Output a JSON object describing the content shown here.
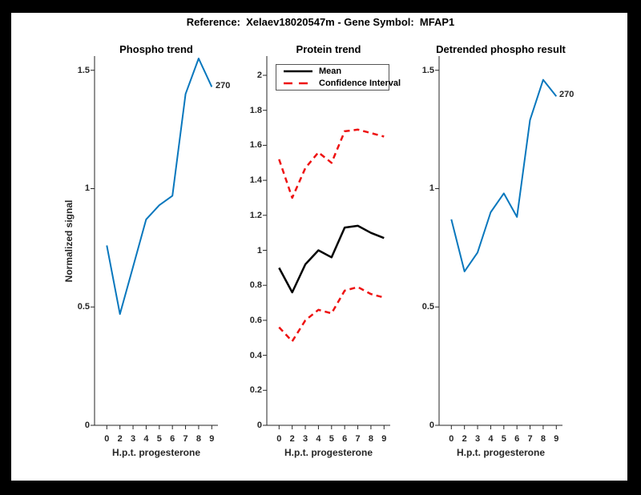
{
  "figure": {
    "title": "Reference:  Xelaev18020547m - Gene Symbol:  MFAP1",
    "background_color": "#ffffff",
    "frame_color": "#000000"
  },
  "axis_color": "#262626",
  "chart_data": [
    {
      "type": "line",
      "title": "Phospho trend",
      "xlabel": "H.p.t. progesterone",
      "ylabel": "Normalized signal",
      "categories": [
        "0",
        "2",
        "3",
        "4",
        "5",
        "6",
        "7",
        "8",
        "9"
      ],
      "yticks": [
        "0",
        "0.5",
        "1",
        "1.5"
      ],
      "ylim": [
        0,
        1.56
      ],
      "grid": false,
      "series": [
        {
          "name": "phospho-signal",
          "color": "#0877bd",
          "dash": "solid",
          "width": 2,
          "values": [
            0.76,
            0.47,
            0.67,
            0.87,
            0.93,
            0.97,
            1.4,
            1.55,
            1.43
          ]
        }
      ],
      "annotation": {
        "text": "270"
      }
    },
    {
      "type": "line",
      "title": "Protein trend",
      "xlabel": "H.p.t. progesterone",
      "ylabel": "",
      "categories": [
        "0",
        "2",
        "3",
        "4",
        "5",
        "6",
        "7",
        "8",
        "9"
      ],
      "yticks": [
        "0",
        "0.2",
        "0.4",
        "0.6",
        "0.8",
        "1",
        "1.2",
        "1.4",
        "1.6",
        "1.8",
        "2"
      ],
      "ylim": [
        0,
        2.11
      ],
      "grid": false,
      "legend_position": "top-left",
      "legend": [
        {
          "label": "Mean",
          "color": "#000000",
          "dash": "solid"
        },
        {
          "label": "Confidence Interval",
          "color": "#ee1111",
          "dash": "dashed"
        }
      ],
      "series": [
        {
          "name": "mean",
          "color": "#000000",
          "dash": "solid",
          "width": 2.5,
          "values": [
            0.9,
            0.76,
            0.92,
            1.0,
            0.96,
            1.13,
            1.14,
            1.1,
            1.07
          ]
        },
        {
          "name": "confidence-upper",
          "color": "#ee1111",
          "dash": "dashed",
          "width": 2.5,
          "values": [
            1.52,
            1.3,
            1.47,
            1.56,
            1.5,
            1.68,
            1.69,
            1.67,
            1.65
          ]
        },
        {
          "name": "confidence-lower",
          "color": "#ee1111",
          "dash": "dashed",
          "width": 2.5,
          "values": [
            0.56,
            0.48,
            0.6,
            0.66,
            0.64,
            0.77,
            0.79,
            0.75,
            0.73
          ]
        }
      ]
    },
    {
      "type": "line",
      "title": "Detrended phospho result",
      "xlabel": "H.p.t. progesterone",
      "ylabel": "",
      "categories": [
        "0",
        "2",
        "3",
        "4",
        "5",
        "6",
        "7",
        "8",
        "9"
      ],
      "yticks": [
        "0",
        "0.5",
        "1",
        "1.5"
      ],
      "ylim": [
        0,
        1.56
      ],
      "grid": false,
      "series": [
        {
          "name": "detrended-phospho",
          "color": "#0877bd",
          "dash": "solid",
          "width": 2,
          "values": [
            0.87,
            0.65,
            0.73,
            0.9,
            0.98,
            0.88,
            1.29,
            1.46,
            1.39
          ]
        }
      ],
      "annotation": {
        "text": "270"
      }
    }
  ]
}
